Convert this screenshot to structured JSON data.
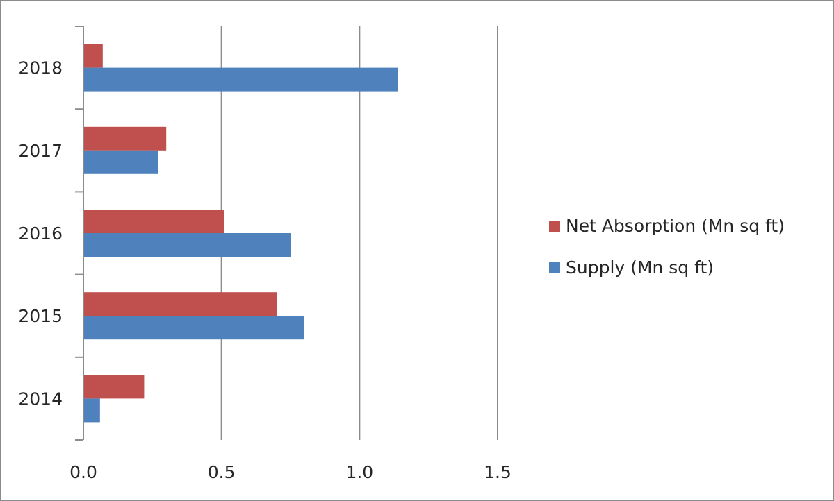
{
  "chart_data": {
    "type": "bar",
    "orientation": "horizontal",
    "categories": [
      "2014",
      "2015",
      "2016",
      "2017",
      "2018"
    ],
    "series": [
      {
        "name": "Net Absorption (Mn sq ft)",
        "color": "#c0504d",
        "values": [
          0.22,
          0.7,
          0.51,
          0.3,
          0.07
        ]
      },
      {
        "name": "Supply (Mn sq ft)",
        "color": "#4f81bd",
        "values": [
          0.06,
          0.8,
          0.75,
          0.27,
          1.14
        ]
      }
    ],
    "xlim": [
      0,
      1.5
    ],
    "x_ticks": [
      "0.0",
      "0.5",
      "1.0",
      "1.5"
    ],
    "title": "",
    "xlabel": "",
    "ylabel": "",
    "grid": "vertical",
    "legend_position": "right"
  }
}
